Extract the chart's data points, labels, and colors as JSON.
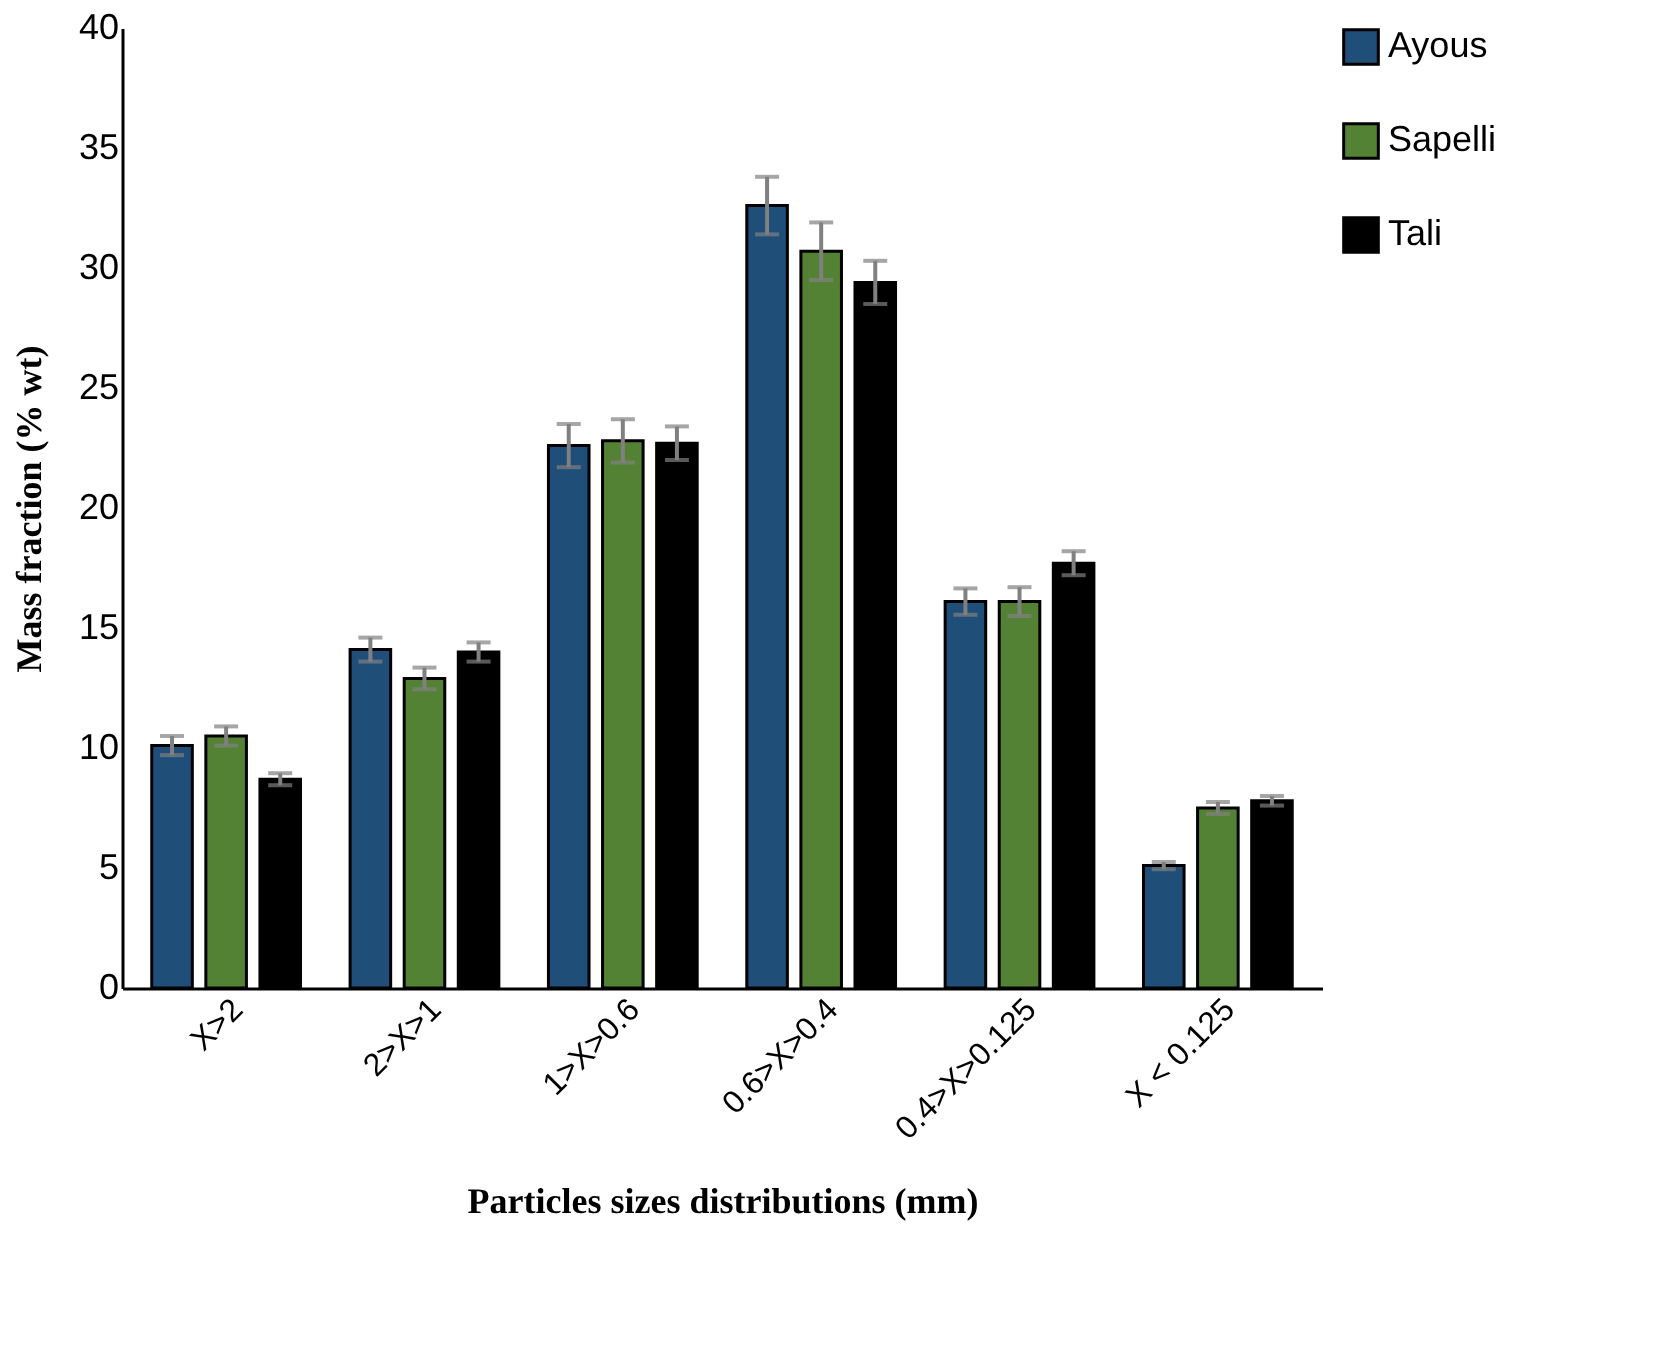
{
  "chart_data": {
    "type": "bar",
    "xlabel": "Particles sizes distributions (mm)",
    "ylabel": "Mass fraction (% wt)",
    "categories": [
      "X>2",
      "2>X>1",
      "1>X>0.6",
      "0.6>X>0.4",
      "0.4>X>0.125",
      "X < 0.125"
    ],
    "series": [
      {
        "name": "Ayous",
        "color": "#1f4e79",
        "values": [
          10.1,
          14.1,
          22.6,
          32.6,
          16.1,
          5.1
        ],
        "errors": [
          0.4,
          0.5,
          0.9,
          1.2,
          0.55,
          0.15
        ]
      },
      {
        "name": "Sapelli",
        "color": "#548235",
        "values": [
          10.5,
          12.9,
          22.8,
          30.7,
          16.1,
          7.5
        ],
        "errors": [
          0.4,
          0.45,
          0.9,
          1.2,
          0.6,
          0.25
        ]
      },
      {
        "name": "Tali",
        "color": "#000000",
        "values": [
          8.7,
          14.0,
          22.7,
          29.4,
          17.7,
          7.8
        ],
        "errors": [
          0.25,
          0.4,
          0.7,
          0.9,
          0.5,
          0.2
        ]
      }
    ],
    "ylim": [
      0,
      40
    ],
    "yticks": [
      0,
      5,
      10,
      15,
      20,
      25,
      30,
      35,
      40
    ],
    "grid": false,
    "legend": "right"
  }
}
